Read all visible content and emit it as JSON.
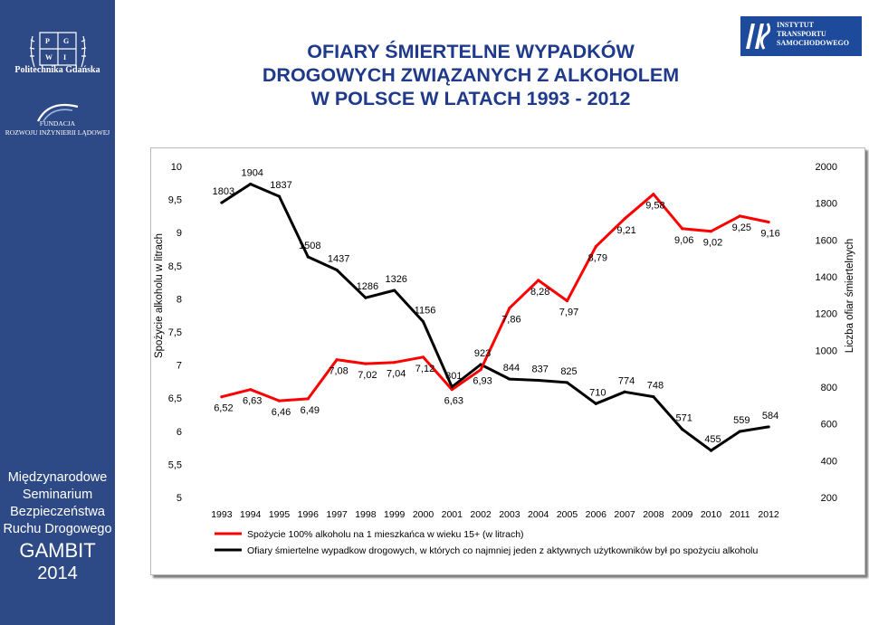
{
  "colors": {
    "sidebar_bg": "#2e4a86",
    "title": "#1f3a8a",
    "series_alcohol": "#ff0000",
    "series_victims": "#000000"
  },
  "sidebar": {
    "university": "Politechnika Gdańska",
    "foundation_line1": "FUNDACJA",
    "foundation_line2": "ROZWOJU INŻYNIERII LĄDOWEJ",
    "seminar_lines": [
      "Międzynarodowe",
      "Seminarium",
      "Bezpieczeństwa",
      "Ruchu Drogowego"
    ],
    "gambit": "GAMBIT",
    "year": "2014"
  },
  "header": {
    "title_lines": [
      "OFIARY ŚMIERTELNE WYPADKÓW",
      "DROGOWYCH ZWIĄZANYCH Z ALKOHOLEM",
      "W POLSCE W LATACH 1993 - 2012"
    ],
    "logo_its_lines": [
      "INSTYTUT",
      "TRANSPORTU",
      "SAMOCHODOWEGO"
    ]
  },
  "chart_data": {
    "type": "line",
    "x": [
      "1993",
      "1994",
      "1995",
      "1996",
      "1997",
      "1998",
      "1999",
      "2000",
      "2001",
      "2002",
      "2003",
      "2004",
      "2005",
      "2006",
      "2007",
      "2008",
      "2009",
      "2010",
      "2011",
      "2012"
    ],
    "ylabel": "Spożycie alkoholu w litrach",
    "y2label": "Liczba ofiar śmiertelnych",
    "ylim": [
      5,
      10
    ],
    "y2lim": [
      200,
      2000
    ],
    "yticks": [
      "5",
      "5,5",
      "6",
      "6,5",
      "7",
      "7,5",
      "8",
      "8,5",
      "9",
      "9,5",
      "10"
    ],
    "y2ticks": [
      "200",
      "400",
      "600",
      "800",
      "1000",
      "1200",
      "1400",
      "1600",
      "1800",
      "2000"
    ],
    "grid": false,
    "legend_position": "bottom",
    "series": [
      {
        "name": "Spożycie 100% alkoholu na 1 mieszkańca w wieku 15+ (w litrach)",
        "axis": "left",
        "color": "#ff0000",
        "values": [
          6.52,
          6.63,
          6.46,
          6.49,
          7.08,
          7.02,
          7.04,
          7.12,
          6.63,
          6.93,
          7.86,
          8.28,
          7.97,
          8.79,
          9.21,
          9.58,
          9.06,
          9.02,
          9.25,
          9.16
        ],
        "labels": [
          "6,52",
          "6,63",
          "6,46",
          "6,49",
          "7,08",
          "7,02",
          "7,04",
          "7,12",
          "6,63",
          "6,93",
          "7,86",
          "8,28",
          "7,97",
          "8,79",
          "9,21",
          "9,58",
          "9,06",
          "9,02",
          "9,25",
          "9,16"
        ]
      },
      {
        "name": "Ofiary śmiertelne wypadkow drogowych, w których co najmniej jeden z aktywnych użytkowników był po spożyciu alkoholu",
        "axis": "right",
        "color": "#000000",
        "values": [
          1803,
          1904,
          1837,
          1508,
          1437,
          1286,
          1326,
          1156,
          801,
          923,
          844,
          837,
          825,
          710,
          774,
          748,
          571,
          455,
          559,
          584
        ],
        "labels": [
          "1803",
          "1904",
          "1837",
          "1508",
          "1437",
          "1286",
          "1326",
          "1156",
          "801",
          "923",
          "844",
          "837",
          "825",
          "710",
          "774",
          "748",
          "571",
          "455",
          "559",
          "584"
        ]
      }
    ]
  }
}
